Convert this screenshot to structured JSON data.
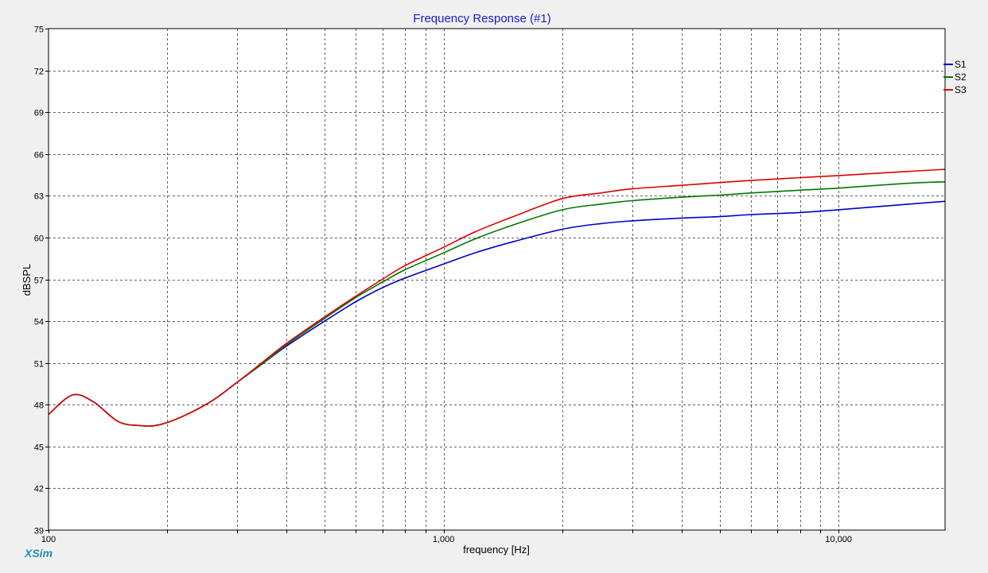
{
  "brand": {
    "label": "XSim",
    "color": "#1f8fb0"
  },
  "chart_data": {
    "type": "line",
    "title": "Frequency Response (#1)",
    "title_color": "#1a1acc",
    "xlabel": "frequency [Hz]",
    "ylabel": "dBSPL",
    "x_scale": "log",
    "xlim": [
      100,
      18600
    ],
    "ylim": [
      39,
      75
    ],
    "y_ticks": [
      39,
      42,
      45,
      48,
      51,
      54,
      57,
      60,
      63,
      66,
      69,
      72,
      75
    ],
    "x_tick_labels": [
      {
        "value": 100,
        "label": "100"
      },
      {
        "value": 1000,
        "label": "1,000"
      },
      {
        "value": 10000,
        "label": "10,000"
      }
    ],
    "x_gridlines": [
      200,
      300,
      400,
      500,
      600,
      700,
      800,
      900,
      1000,
      2000,
      3000,
      4000,
      5000,
      6000,
      7000,
      8000,
      9000,
      10000
    ],
    "grid": true,
    "legend_position": "top-right",
    "series": [
      {
        "name": "S1",
        "color": "#0000cc",
        "points": [
          [
            100,
            47.3
          ],
          [
            115,
            48.7
          ],
          [
            130,
            48.2
          ],
          [
            150,
            46.8
          ],
          [
            170,
            46.5
          ],
          [
            190,
            46.55
          ],
          [
            220,
            47.2
          ],
          [
            260,
            48.3
          ],
          [
            300,
            49.6
          ],
          [
            350,
            51.0
          ],
          [
            400,
            52.2
          ],
          [
            500,
            54.0
          ],
          [
            600,
            55.4
          ],
          [
            700,
            56.4
          ],
          [
            800,
            57.1
          ],
          [
            1000,
            58.1
          ],
          [
            1200,
            58.9
          ],
          [
            1500,
            59.7
          ],
          [
            2000,
            60.6
          ],
          [
            2500,
            61.0
          ],
          [
            3000,
            61.2
          ],
          [
            4000,
            61.4
          ],
          [
            5000,
            61.5
          ],
          [
            6000,
            61.65
          ],
          [
            8000,
            61.8
          ],
          [
            10000,
            62.0
          ],
          [
            15000,
            62.4
          ],
          [
            18600,
            62.6
          ]
        ]
      },
      {
        "name": "S2",
        "color": "#007700",
        "points": [
          [
            100,
            47.3
          ],
          [
            115,
            48.7
          ],
          [
            130,
            48.2
          ],
          [
            150,
            46.8
          ],
          [
            170,
            46.5
          ],
          [
            190,
            46.55
          ],
          [
            220,
            47.2
          ],
          [
            260,
            48.3
          ],
          [
            300,
            49.6
          ],
          [
            350,
            51.0
          ],
          [
            400,
            52.3
          ],
          [
            500,
            54.2
          ],
          [
            600,
            55.7
          ],
          [
            700,
            56.8
          ],
          [
            800,
            57.7
          ],
          [
            1000,
            58.9
          ],
          [
            1200,
            59.9
          ],
          [
            1500,
            60.9
          ],
          [
            2000,
            62.0
          ],
          [
            2500,
            62.4
          ],
          [
            3000,
            62.65
          ],
          [
            4000,
            62.9
          ],
          [
            5000,
            63.05
          ],
          [
            6000,
            63.2
          ],
          [
            8000,
            63.4
          ],
          [
            10000,
            63.55
          ],
          [
            15000,
            63.9
          ],
          [
            18600,
            64.0
          ]
        ]
      },
      {
        "name": "S3",
        "color": "#dd0000",
        "points": [
          [
            100,
            47.3
          ],
          [
            115,
            48.7
          ],
          [
            130,
            48.2
          ],
          [
            150,
            46.8
          ],
          [
            170,
            46.5
          ],
          [
            190,
            46.55
          ],
          [
            220,
            47.2
          ],
          [
            260,
            48.3
          ],
          [
            300,
            49.6
          ],
          [
            350,
            51.1
          ],
          [
            400,
            52.4
          ],
          [
            500,
            54.3
          ],
          [
            600,
            55.8
          ],
          [
            700,
            57.0
          ],
          [
            800,
            58.0
          ],
          [
            1000,
            59.3
          ],
          [
            1200,
            60.4
          ],
          [
            1500,
            61.5
          ],
          [
            2000,
            62.8
          ],
          [
            2500,
            63.2
          ],
          [
            3000,
            63.5
          ],
          [
            4000,
            63.75
          ],
          [
            5000,
            63.95
          ],
          [
            6000,
            64.1
          ],
          [
            8000,
            64.3
          ],
          [
            10000,
            64.45
          ],
          [
            15000,
            64.75
          ],
          [
            18600,
            64.9
          ]
        ]
      }
    ]
  }
}
